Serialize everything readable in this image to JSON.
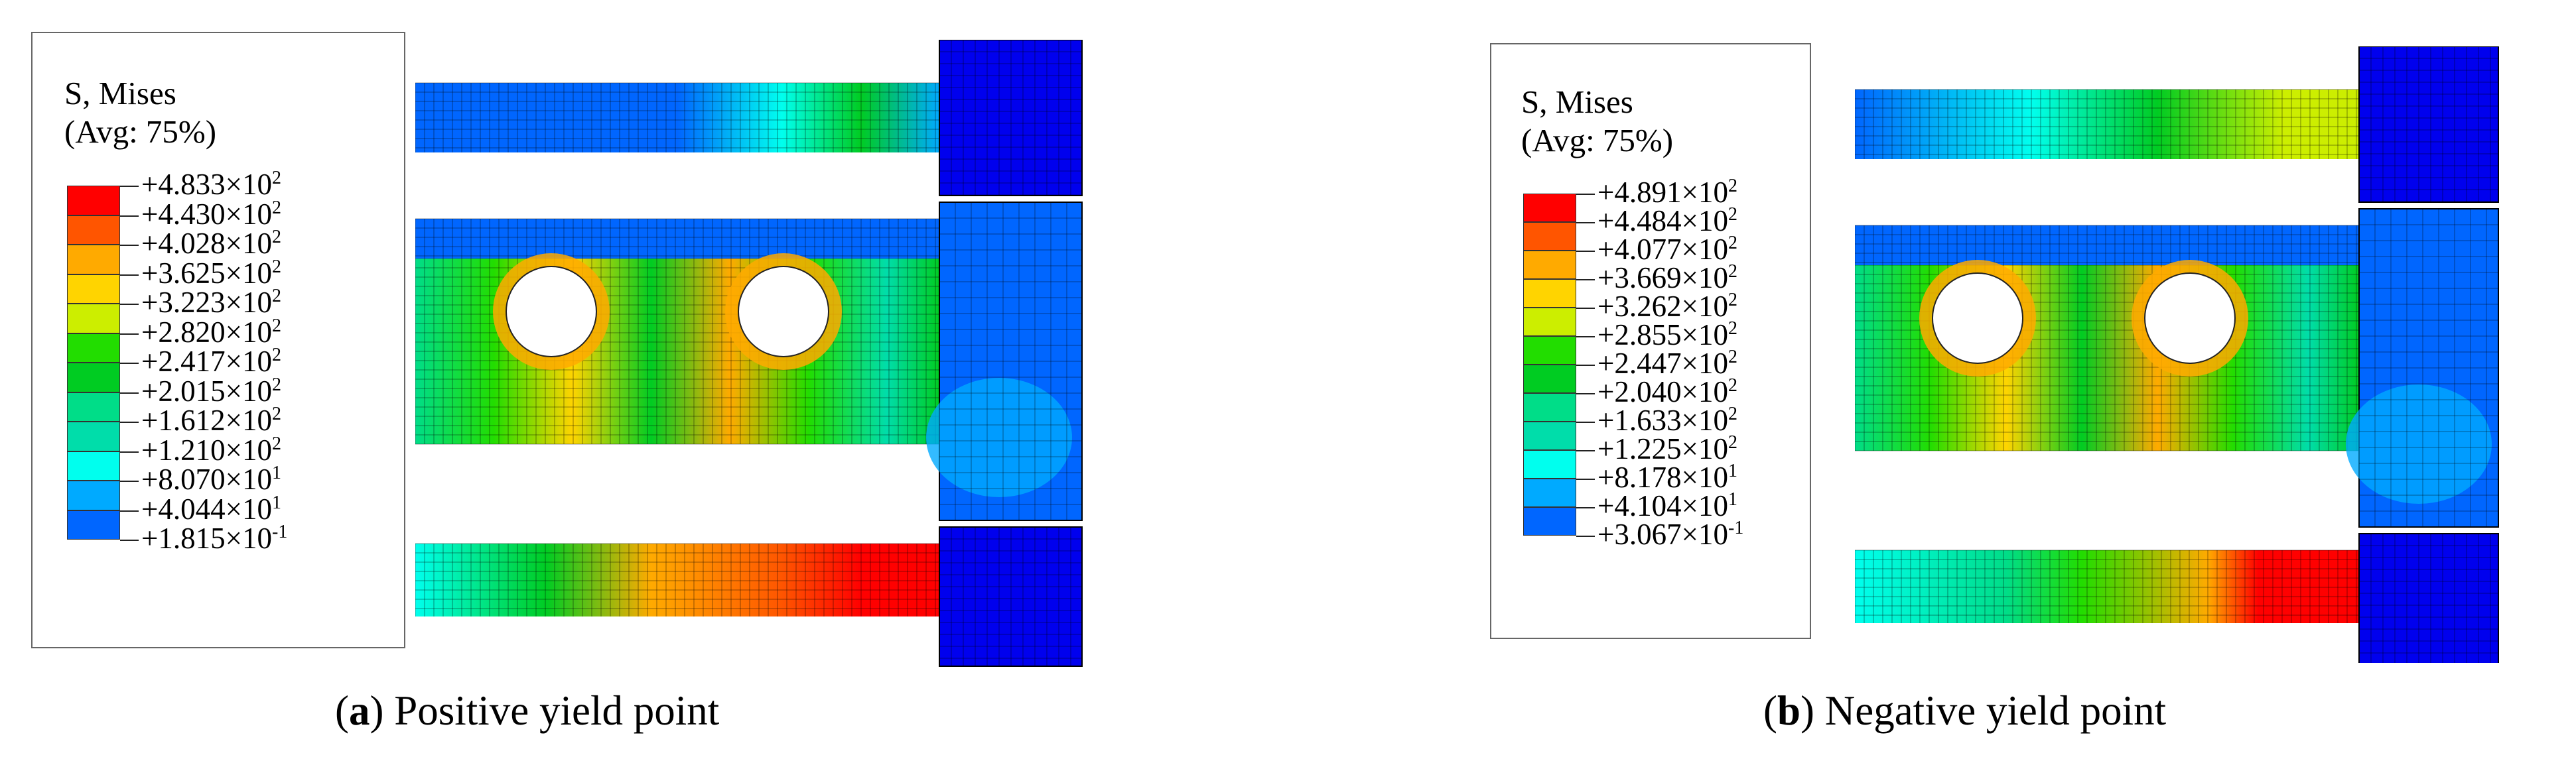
{
  "panels": [
    {
      "legend": {
        "title_line1": "S, Mises",
        "title_line2": "(Avg: 75%)",
        "labels": [
          {
            "mantissa": "+4.833×10",
            "exp": "2"
          },
          {
            "mantissa": "+4.430×10",
            "exp": "2"
          },
          {
            "mantissa": "+4.028×10",
            "exp": "2"
          },
          {
            "mantissa": "+3.625×10",
            "exp": "2"
          },
          {
            "mantissa": "+3.223×10",
            "exp": "2"
          },
          {
            "mantissa": "+2.820×10",
            "exp": "2"
          },
          {
            "mantissa": "+2.417×10",
            "exp": "2"
          },
          {
            "mantissa": "+2.015×10",
            "exp": "2"
          },
          {
            "mantissa": "+1.612×10",
            "exp": "2"
          },
          {
            "mantissa": "+1.210×10",
            "exp": "2"
          },
          {
            "mantissa": "+8.070×10",
            "exp": "1"
          },
          {
            "mantissa": "+4.044×10",
            "exp": "1"
          },
          {
            "mantissa": "+1.815×10",
            "exp": "-1"
          }
        ]
      },
      "caption": {
        "letter": "a",
        "text": " Positive yield point"
      }
    },
    {
      "legend": {
        "title_line1": "S, Mises",
        "title_line2": "(Avg: 75%)",
        "labels": [
          {
            "mantissa": "+4.891×10",
            "exp": "2"
          },
          {
            "mantissa": "+4.484×10",
            "exp": "2"
          },
          {
            "mantissa": "+4.077×10",
            "exp": "2"
          },
          {
            "mantissa": "+3.669×10",
            "exp": "2"
          },
          {
            "mantissa": "+3.262×10",
            "exp": "2"
          },
          {
            "mantissa": "+2.855×10",
            "exp": "2"
          },
          {
            "mantissa": "+2.447×10",
            "exp": "2"
          },
          {
            "mantissa": "+2.040×10",
            "exp": "2"
          },
          {
            "mantissa": "+1.633×10",
            "exp": "2"
          },
          {
            "mantissa": "+1.225×10",
            "exp": "2"
          },
          {
            "mantissa": "+8.178×10",
            "exp": "1"
          },
          {
            "mantissa": "+4.104×10",
            "exp": "1"
          },
          {
            "mantissa": "+3.067×10",
            "exp": "-1"
          }
        ]
      },
      "caption": {
        "letter": "b",
        "text": " Negative yield point"
      }
    }
  ],
  "colors": {
    "band_colors": [
      "#ff0000",
      "#ff5500",
      "#ffaa00",
      "#ffd400",
      "#ccee00",
      "#22dd00",
      "#00cc22",
      "#00dd88",
      "#00ddaa",
      "#00ffee",
      "#00aaff",
      "#0066ff",
      "#0000ff"
    ],
    "mesh_base": "#0000ee",
    "web_base": "#33cc55",
    "hole": "#ffffff"
  }
}
